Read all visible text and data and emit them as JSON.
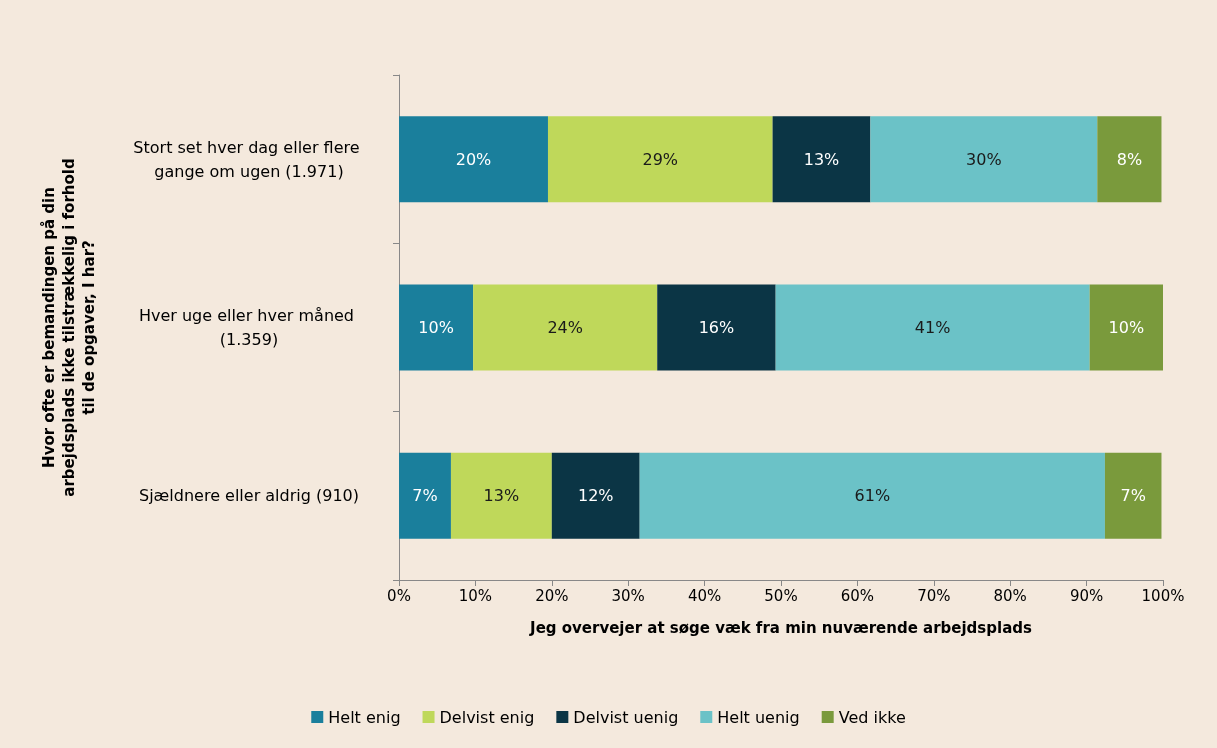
{
  "chart_data": {
    "type": "bar",
    "orientation": "horizontal",
    "stacked": true,
    "xlabel": "Jeg overvejer at søge væk fra min nuværende arbejdsplads",
    "ylabel": "Hvor ofte er bemandingen på din arbejdsplads ikke tilstrækkelig i forhold til de opgaver, I har?",
    "categories": [
      "Stort set hver dag eller flere gange om ugen (1.971)",
      "Hver uge eller hver måned (1.359)",
      "Sjældnere eller aldrig (910)"
    ],
    "series": [
      {
        "name": "Helt enig",
        "color": "#1a7f9c",
        "values": [
          19.5,
          9.7,
          6.8
        ],
        "value_labels": [
          "20%",
          "10%",
          "7%"
        ]
      },
      {
        "name": "Delvist enig",
        "color": "#bfd85a",
        "values": [
          29.4,
          24.1,
          13.2
        ],
        "value_labels": [
          "29%",
          "24%",
          "13%"
        ]
      },
      {
        "name": "Delvist uenig",
        "color": "#0b3545",
        "values": [
          12.8,
          15.5,
          11.5
        ],
        "value_labels": [
          "13%",
          "16%",
          "12%"
        ]
      },
      {
        "name": "Helt uenig",
        "color": "#6bc2c7",
        "values": [
          29.7,
          41.1,
          60.9
        ],
        "value_labels": [
          "30%",
          "41%",
          "61%"
        ]
      },
      {
        "name": "Ved ikke",
        "color": "#7a9a3c",
        "values": [
          8.4,
          9.6,
          7.4
        ],
        "value_labels": [
          "8%",
          "10%",
          "7%"
        ]
      }
    ],
    "xlim": [
      0,
      100
    ],
    "xticks": [
      {
        "value": 0,
        "label": "0%"
      },
      {
        "value": 10,
        "label": "10%"
      },
      {
        "value": 20,
        "label": "20%"
      },
      {
        "value": 30,
        "label": "30%"
      },
      {
        "value": 40,
        "label": "40%"
      },
      {
        "value": 50,
        "label": "50%"
      },
      {
        "value": 60,
        "label": "60%"
      },
      {
        "value": 70,
        "label": "70%"
      },
      {
        "value": 80,
        "label": "80%"
      },
      {
        "value": 90,
        "label": "90%"
      },
      {
        "value": 100,
        "label": "100%"
      }
    ],
    "grid": false,
    "legend": "bottom"
  }
}
